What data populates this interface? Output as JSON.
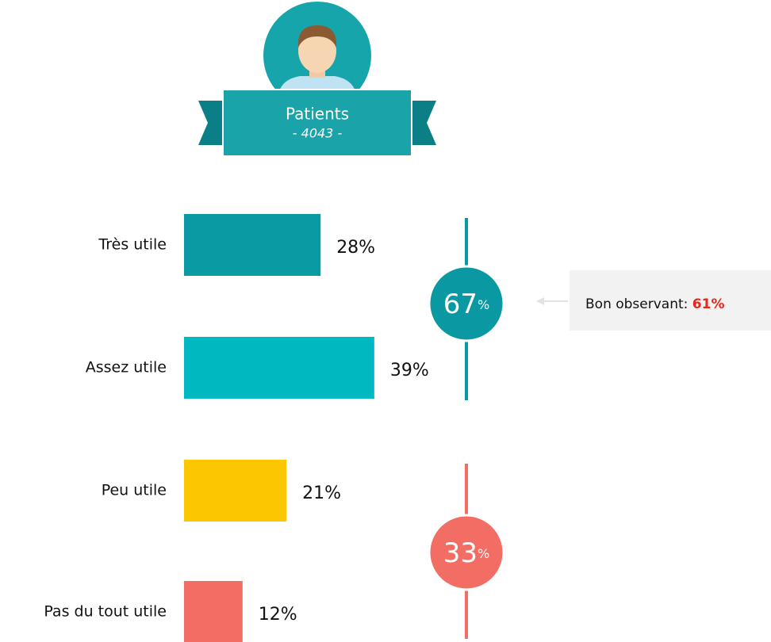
{
  "header": {
    "title": "Patients",
    "subtitle": "- 4043 -"
  },
  "chart_data": {
    "type": "bar",
    "orientation": "horizontal",
    "categories": [
      "Très utile",
      "Assez utile",
      "Peu utile",
      "Pas du tout utile"
    ],
    "values": [
      28,
      39,
      21,
      12
    ],
    "value_labels": [
      "28%",
      "39%",
      "21%",
      "12%"
    ],
    "colors": [
      "#0a9aa4",
      "#00b8c0",
      "#fcc600",
      "#f26e65"
    ],
    "groups": [
      {
        "value": 67,
        "unit": "%",
        "color": "#0a98a3"
      },
      {
        "value": 33,
        "unit": "%",
        "color": "#f26e65"
      }
    ],
    "annotation": {
      "text": "Bon observant:",
      "highlight": "61%",
      "highlight_color": "#e8261c"
    }
  }
}
